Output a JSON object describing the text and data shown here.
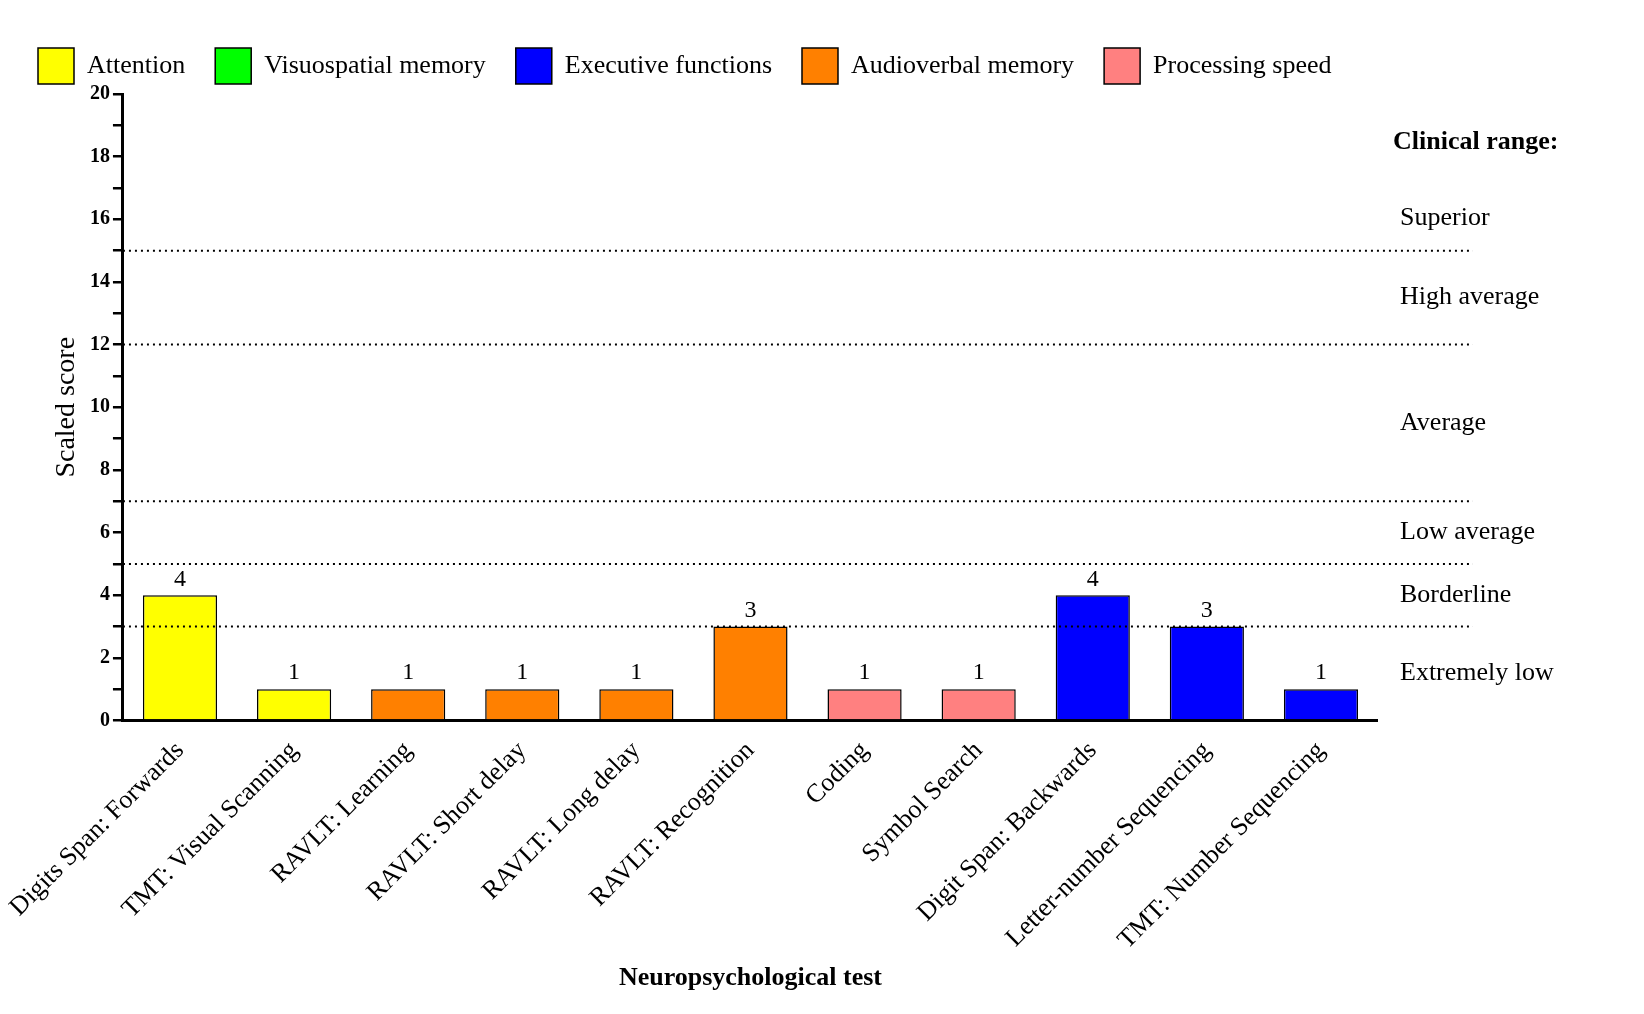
{
  "chart_data": {
    "type": "bar",
    "xlabel": "Neuropsychological test",
    "ylabel": "Scaled score",
    "categories": [
      "Digits Span: Forwards",
      "TMT: Visual Scanning",
      "RAVLT: Learning",
      "RAVLT: Short delay",
      "RAVLT: Long delay",
      "RAVLT: Recognition",
      "Coding",
      "Symbol Search",
      "Digit Span: Backwards",
      "Letter-number Sequencing",
      "TMT: Number Sequencing"
    ],
    "series": [
      {
        "name": "Attention",
        "color": "#ffff00",
        "values": [
          4,
          1,
          null,
          null,
          null,
          null,
          null,
          null,
          null,
          null,
          null
        ]
      },
      {
        "name": "Visuospatial memory",
        "color": "#00ff00",
        "values": [
          null,
          null,
          null,
          null,
          null,
          null,
          null,
          null,
          null,
          null,
          null
        ]
      },
      {
        "name": "Executive functions",
        "color": "#0000ff",
        "values": [
          null,
          null,
          null,
          null,
          null,
          null,
          null,
          null,
          4,
          3,
          1
        ]
      },
      {
        "name": "Audioverbal memory",
        "color": "#ff8000",
        "values": [
          null,
          null,
          1,
          1,
          1,
          3,
          null,
          null,
          null,
          null,
          null
        ]
      },
      {
        "name": "Processing speed",
        "color": "#ff8080",
        "values": [
          null,
          null,
          null,
          null,
          null,
          null,
          1,
          1,
          null,
          null,
          null
        ]
      }
    ],
    "stacked": true,
    "data_labels": true,
    "ylim": [
      0,
      20
    ],
    "yticks": [
      0,
      {
        "value": 1,
        "label": null
      },
      2,
      {
        "value": 3,
        "label": null
      },
      4,
      {
        "value": 5,
        "label": null
      },
      6,
      {
        "value": 7,
        "label": null
      },
      8,
      {
        "value": 9,
        "label": null
      },
      10,
      {
        "value": 11,
        "label": null
      },
      12,
      {
        "value": 13,
        "label": null
      },
      14,
      {
        "value": 15,
        "label": null
      },
      16,
      {
        "value": 17,
        "label": null
      },
      18,
      {
        "value": 19,
        "label": null
      },
      20
    ],
    "grid": false,
    "legend": "top left",
    "ref_lines": [
      {
        "axis": "y",
        "value": 15,
        "line_style": "dotted"
      },
      {
        "axis": "y",
        "value": 12,
        "line_style": "dotted"
      },
      {
        "axis": "y",
        "value": 7,
        "line_style": "dotted"
      },
      {
        "axis": "y",
        "value": 5,
        "line_style": "dotted"
      },
      {
        "axis": "y",
        "value": 3,
        "line_style": "dotted"
      }
    ],
    "annotations": [
      "Clinical range:",
      "Superior",
      "High average",
      "Average",
      "Low average",
      "Borderline",
      "Extremely low"
    ]
  }
}
